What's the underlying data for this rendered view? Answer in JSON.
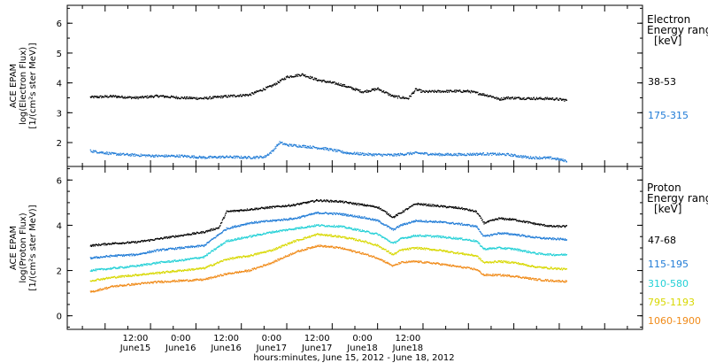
{
  "chart_data": [
    {
      "type": "scatter",
      "title": "",
      "ylabel_lines": [
        "ACE EPAM",
        "log(Electron Flux)",
        "[1/(cm²s ster MeV)]"
      ],
      "ylim": [
        1.2,
        6.6
      ],
      "yticks": [
        2,
        3,
        4,
        5,
        6
      ],
      "legend_title_lines": [
        "Electron",
        "Energy ranges",
        "[keV]"
      ],
      "series": [
        {
          "name": "38-53",
          "color": "#000000",
          "points": [
            [
              0,
              3.52
            ],
            [
              6,
              3.55
            ],
            [
              12,
              3.5
            ],
            [
              18,
              3.56
            ],
            [
              24,
              3.5
            ],
            [
              30,
              3.48
            ],
            [
              36,
              3.55
            ],
            [
              42,
              3.6
            ],
            [
              48,
              3.9
            ],
            [
              52,
              4.2
            ],
            [
              56,
              4.28
            ],
            [
              60,
              4.1
            ],
            [
              66,
              3.95
            ],
            [
              72,
              3.7
            ],
            [
              76,
              3.8
            ],
            [
              80,
              3.55
            ],
            [
              84,
              3.48
            ],
            [
              86,
              3.78
            ],
            [
              88,
              3.7
            ],
            [
              94,
              3.72
            ],
            [
              100,
              3.72
            ],
            [
              106,
              3.55
            ],
            [
              108,
              3.45
            ],
            [
              110,
              3.5
            ],
            [
              116,
              3.48
            ],
            [
              122,
              3.47
            ],
            [
              126,
              3.42
            ]
          ]
        },
        {
          "name": "175-315",
          "color": "#1f7bd6",
          "points": [
            [
              0,
              1.72
            ],
            [
              6,
              1.62
            ],
            [
              12,
              1.58
            ],
            [
              18,
              1.55
            ],
            [
              24,
              1.55
            ],
            [
              30,
              1.5
            ],
            [
              36,
              1.52
            ],
            [
              42,
              1.5
            ],
            [
              46,
              1.52
            ],
            [
              48,
              1.7
            ],
            [
              50,
              2.0
            ],
            [
              52,
              1.92
            ],
            [
              56,
              1.88
            ],
            [
              62,
              1.8
            ],
            [
              68,
              1.65
            ],
            [
              74,
              1.6
            ],
            [
              80,
              1.58
            ],
            [
              86,
              1.65
            ],
            [
              92,
              1.6
            ],
            [
              98,
              1.6
            ],
            [
              104,
              1.62
            ],
            [
              110,
              1.6
            ],
            [
              116,
              1.5
            ],
            [
              122,
              1.48
            ],
            [
              126,
              1.38
            ]
          ]
        }
      ]
    },
    {
      "type": "scatter",
      "title": "",
      "ylabel_lines": [
        "ACE EPAM",
        "log(Proton Flux)",
        "[1/(cm²s ster MeV)]"
      ],
      "ylim": [
        -0.6,
        6.6
      ],
      "yticks": [
        0,
        2,
        4,
        6
      ],
      "legend_title_lines": [
        "Proton",
        "Energy ranges",
        "[keV]"
      ],
      "series": [
        {
          "name": "47-68",
          "color": "#000000",
          "points": [
            [
              0,
              3.1
            ],
            [
              6,
              3.2
            ],
            [
              12,
              3.25
            ],
            [
              18,
              3.4
            ],
            [
              24,
              3.55
            ],
            [
              30,
              3.7
            ],
            [
              34,
              3.9
            ],
            [
              36,
              4.6
            ],
            [
              42,
              4.7
            ],
            [
              48,
              4.8
            ],
            [
              54,
              4.9
            ],
            [
              60,
              5.1
            ],
            [
              66,
              5.05
            ],
            [
              72,
              4.9
            ],
            [
              76,
              4.8
            ],
            [
              80,
              4.35
            ],
            [
              82,
              4.55
            ],
            [
              86,
              4.95
            ],
            [
              92,
              4.85
            ],
            [
              98,
              4.75
            ],
            [
              102,
              4.6
            ],
            [
              104,
              4.1
            ],
            [
              108,
              4.3
            ],
            [
              112,
              4.25
            ],
            [
              118,
              4.05
            ],
            [
              122,
              3.95
            ],
            [
              126,
              3.95
            ]
          ]
        },
        {
          "name": "115-195",
          "color": "#1f7bd6",
          "points": [
            [
              0,
              2.55
            ],
            [
              6,
              2.65
            ],
            [
              12,
              2.7
            ],
            [
              18,
              2.9
            ],
            [
              24,
              3.0
            ],
            [
              30,
              3.1
            ],
            [
              36,
              3.85
            ],
            [
              42,
              4.1
            ],
            [
              48,
              4.2
            ],
            [
              54,
              4.3
            ],
            [
              60,
              4.55
            ],
            [
              66,
              4.5
            ],
            [
              72,
              4.35
            ],
            [
              76,
              4.2
            ],
            [
              80,
              3.8
            ],
            [
              82,
              4.0
            ],
            [
              86,
              4.2
            ],
            [
              92,
              4.15
            ],
            [
              98,
              4.05
            ],
            [
              102,
              3.95
            ],
            [
              104,
              3.5
            ],
            [
              108,
              3.65
            ],
            [
              112,
              3.6
            ],
            [
              118,
              3.45
            ],
            [
              122,
              3.4
            ],
            [
              126,
              3.38
            ]
          ]
        },
        {
          "name": "310-580",
          "color": "#22d0d6",
          "points": [
            [
              0,
              2.0
            ],
            [
              6,
              2.1
            ],
            [
              12,
              2.2
            ],
            [
              18,
              2.35
            ],
            [
              24,
              2.45
            ],
            [
              30,
              2.6
            ],
            [
              36,
              3.3
            ],
            [
              42,
              3.5
            ],
            [
              48,
              3.7
            ],
            [
              54,
              3.85
            ],
            [
              60,
              4.0
            ],
            [
              66,
              3.95
            ],
            [
              72,
              3.75
            ],
            [
              76,
              3.6
            ],
            [
              80,
              3.2
            ],
            [
              82,
              3.4
            ],
            [
              86,
              3.55
            ],
            [
              92,
              3.5
            ],
            [
              98,
              3.4
            ],
            [
              102,
              3.3
            ],
            [
              104,
              2.95
            ],
            [
              108,
              3.0
            ],
            [
              112,
              2.95
            ],
            [
              118,
              2.75
            ],
            [
              122,
              2.7
            ],
            [
              126,
              2.7
            ]
          ]
        },
        {
          "name": "795-1193",
          "color": "#d8d800",
          "points": [
            [
              0,
              1.55
            ],
            [
              6,
              1.7
            ],
            [
              12,
              1.8
            ],
            [
              18,
              1.9
            ],
            [
              24,
              2.0
            ],
            [
              30,
              2.1
            ],
            [
              36,
              2.5
            ],
            [
              42,
              2.65
            ],
            [
              48,
              2.9
            ],
            [
              54,
              3.3
            ],
            [
              60,
              3.6
            ],
            [
              66,
              3.5
            ],
            [
              72,
              3.3
            ],
            [
              76,
              3.1
            ],
            [
              80,
              2.7
            ],
            [
              82,
              2.9
            ],
            [
              86,
              3.0
            ],
            [
              92,
              2.9
            ],
            [
              98,
              2.75
            ],
            [
              102,
              2.65
            ],
            [
              104,
              2.35
            ],
            [
              108,
              2.4
            ],
            [
              112,
              2.35
            ],
            [
              118,
              2.15
            ],
            [
              122,
              2.1
            ],
            [
              126,
              2.05
            ]
          ]
        },
        {
          "name": "1060-1900",
          "color": "#f08a18",
          "points": [
            [
              0,
              1.05
            ],
            [
              6,
              1.3
            ],
            [
              12,
              1.4
            ],
            [
              18,
              1.5
            ],
            [
              24,
              1.55
            ],
            [
              30,
              1.6
            ],
            [
              36,
              1.85
            ],
            [
              42,
              2.0
            ],
            [
              48,
              2.35
            ],
            [
              54,
              2.8
            ],
            [
              60,
              3.1
            ],
            [
              66,
              3.0
            ],
            [
              72,
              2.75
            ],
            [
              76,
              2.55
            ],
            [
              80,
              2.2
            ],
            [
              82,
              2.35
            ],
            [
              86,
              2.4
            ],
            [
              92,
              2.3
            ],
            [
              98,
              2.15
            ],
            [
              102,
              2.05
            ],
            [
              104,
              1.8
            ],
            [
              108,
              1.8
            ],
            [
              112,
              1.75
            ],
            [
              118,
              1.6
            ],
            [
              122,
              1.55
            ],
            [
              126,
              1.52
            ]
          ]
        }
      ]
    }
  ],
  "x_axis": {
    "xlim_hours": [
      2,
      154
    ],
    "major_ticks": [
      {
        "h": 12,
        "time": "12:00",
        "date": "June15"
      },
      {
        "h": 24,
        "time": "0:00",
        "date": "June16"
      },
      {
        "h": 36,
        "time": "12:00",
        "date": "June16"
      },
      {
        "h": 48,
        "time": "0:00",
        "date": "June17"
      },
      {
        "h": 60,
        "time": "12:00",
        "date": "June17"
      },
      {
        "h": 72,
        "time": "0:00",
        "date": "June18"
      },
      {
        "h": 84,
        "time": "12:00",
        "date": "June18"
      }
    ],
    "xlabel": "hours:minutes, June 15, 2012 - June 18, 2012"
  }
}
